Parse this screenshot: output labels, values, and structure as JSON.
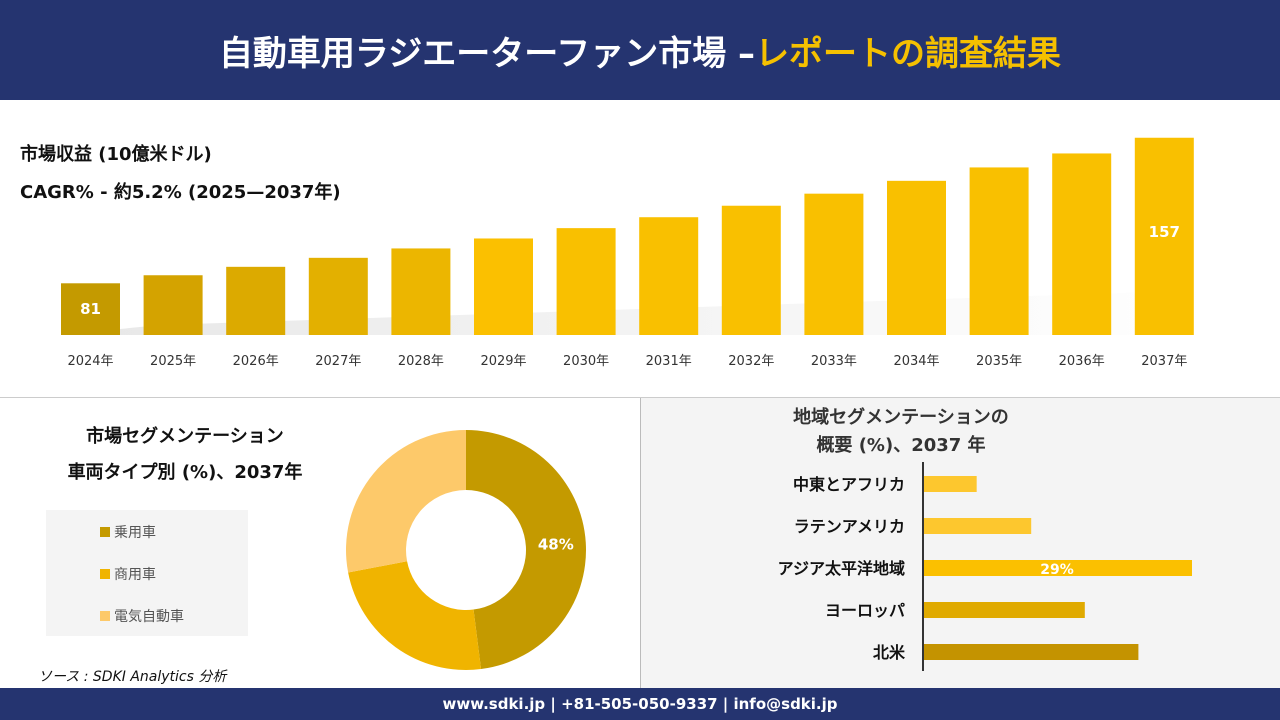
{
  "header": {
    "title_main": "自動車用ラジエーターファン市場 –",
    "title_accent": "レポートの調査結果"
  },
  "revenue": {
    "line1": "市場収益 (10億米ドル)",
    "line2": "CAGR% - 約5.2% (2025—2037年)"
  },
  "vehicle": {
    "title1": "市場セグメンテーション",
    "title2": "車両タイプ別 (%)、2037年"
  },
  "region": {
    "title1": "地域セグメンテーションの",
    "title2": "概要 (%)、2037 年"
  },
  "source": "ソース : SDKI Analytics 分析",
  "footer": "www.sdki.jp | +81-505-050-9337 | info@sdki.jp",
  "chart_data": [
    {
      "type": "bar",
      "title": "市場収益 (10億米ドル)",
      "categories": [
        "2024年",
        "2025年",
        "2026年",
        "2027年",
        "2028年",
        "2029年",
        "2030年",
        "2031年",
        "2032年",
        "2033年",
        "2034年",
        "2035年",
        "2036年",
        "2037年"
      ],
      "values": [
        81,
        85.2,
        89.6,
        94.3,
        99.2,
        104.4,
        109.8,
        115.5,
        121.5,
        127.8,
        134.5,
        141.5,
        148.8,
        157
      ],
      "data_labels": {
        "0": "81",
        "13": "157"
      },
      "ylim": [
        54,
        160
      ],
      "colors": [
        "#c49a00",
        "#d4a300",
        "#dcaa00",
        "#e3b000",
        "#ecb600",
        "#fbc000",
        "#f9c000",
        "#f9c000",
        "#f9c000",
        "#f9c000",
        "#f9c000",
        "#f9c000",
        "#f9c000",
        "#f9c000"
      ]
    },
    {
      "type": "pie",
      "donut": true,
      "title": "車両タイプ別 (%)、2037年",
      "labels": [
        "乗用車",
        "商用車",
        "電気自動車"
      ],
      "values": [
        48,
        24,
        28
      ],
      "data_labels": [
        "48%",
        "",
        ""
      ],
      "colors": [
        "#c49a00",
        "#f0b400",
        "#fdc96a"
      ],
      "legend": "left"
    },
    {
      "type": "bar",
      "orientation": "horizontal",
      "title": "地域セグメンテーションの概要 (%)、2037 年",
      "categories": [
        "中東とアフリカ",
        "ラテンアメリカ",
        "アジア太平洋地域",
        "ヨーロッパ",
        "北米"
      ],
      "values": [
        5.7,
        11.6,
        29,
        17.4,
        23.2
      ],
      "data_labels": [
        "",
        "",
        "29%",
        "",
        ""
      ],
      "colors": [
        "#fdc72e",
        "#fdc72e",
        "#fbc000",
        "#e0aa00",
        "#c49300"
      ]
    }
  ]
}
